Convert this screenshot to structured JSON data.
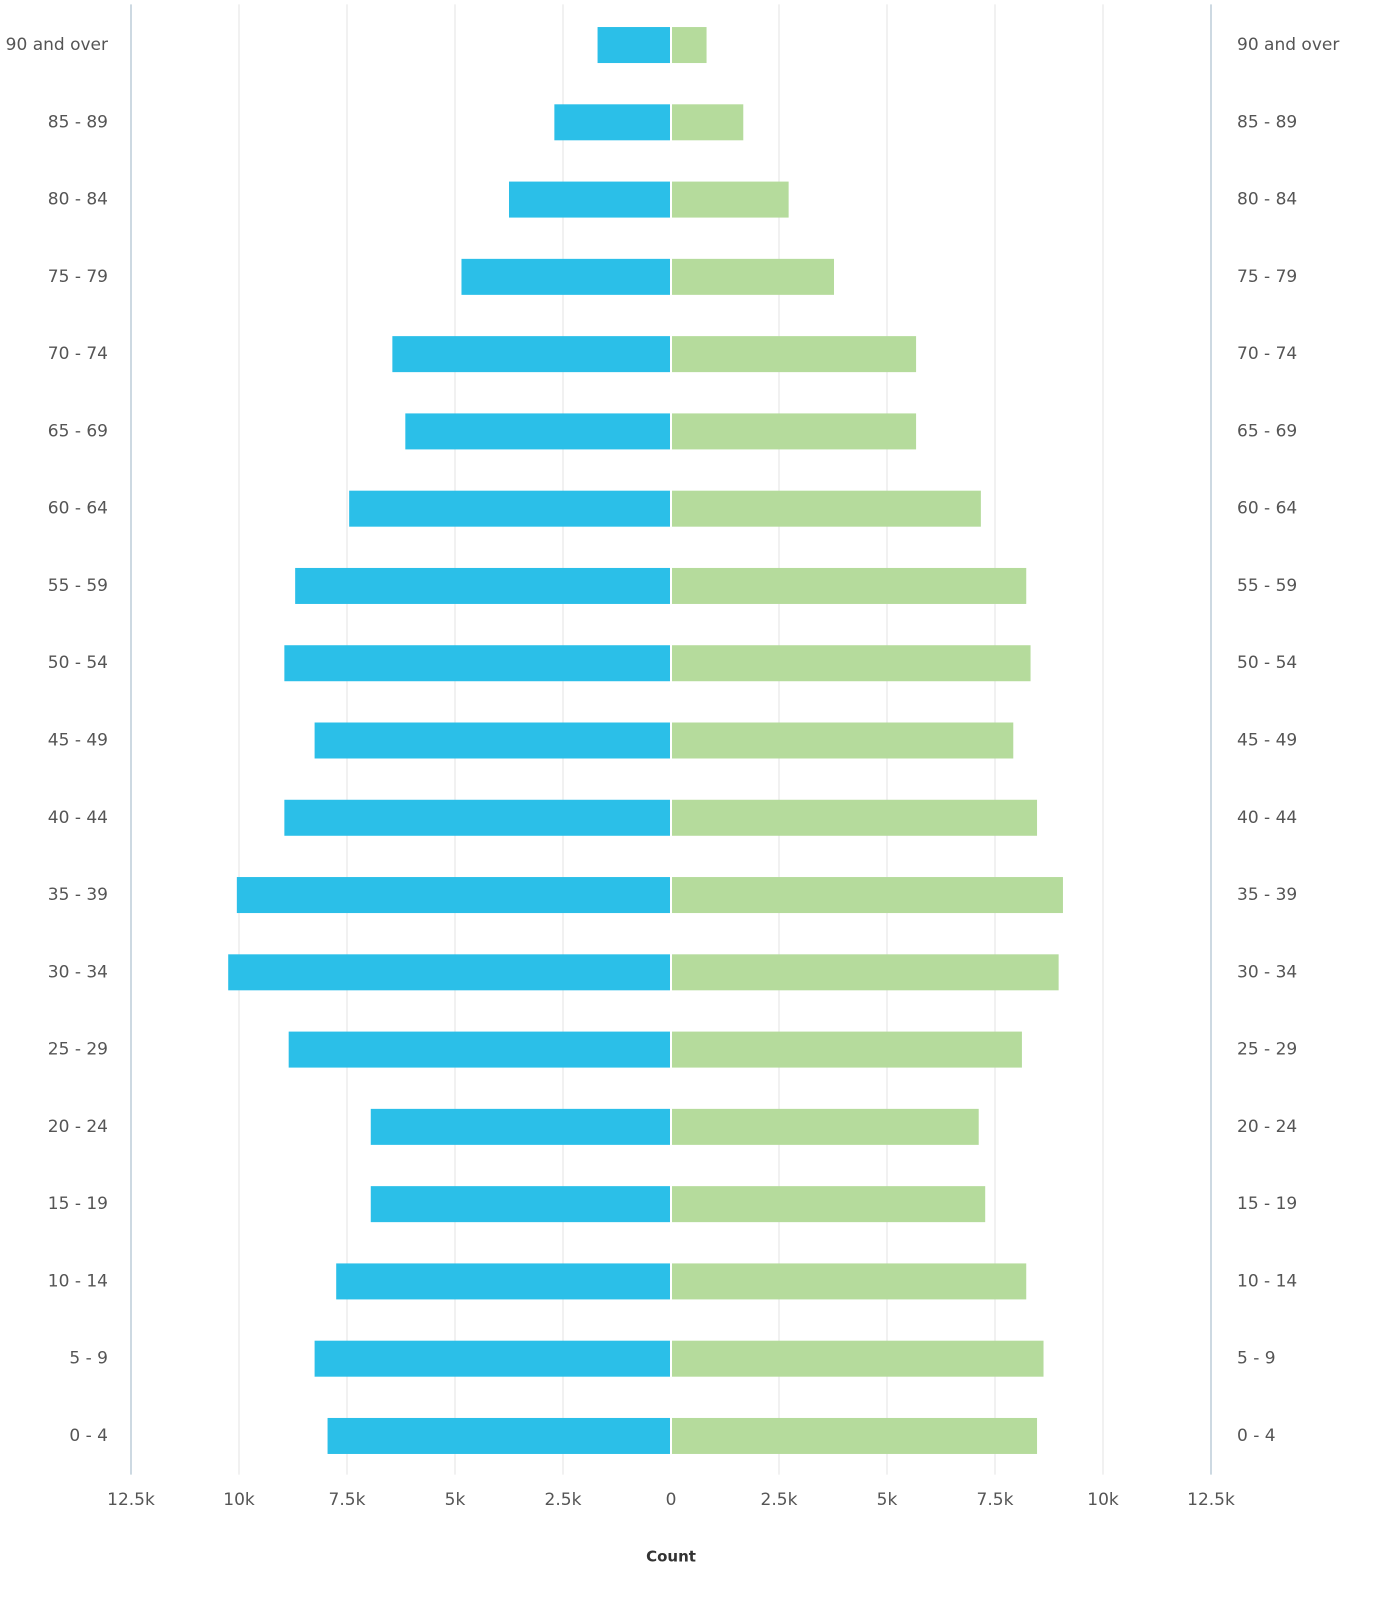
{
  "chart_data": {
    "type": "pyramid",
    "categories": [
      "90 and over",
      "85 - 89",
      "80 - 84",
      "75 - 79",
      "70 - 74",
      "65 - 69",
      "60 - 64",
      "55 - 59",
      "50 - 54",
      "45 - 49",
      "40 - 44",
      "35 - 39",
      "30 - 34",
      "25 - 29",
      "20 - 24",
      "15 - 19",
      "10 - 14",
      "5 - 9",
      "0 - 4"
    ],
    "series": [
      {
        "color": "#2bbfe8",
        "values": [
          1700,
          2700,
          3750,
          4850,
          6450,
          6150,
          7450,
          8700,
          8950,
          8250,
          8950,
          10050,
          10250,
          8850,
          6950,
          6950,
          7750,
          8250,
          7950
        ]
      },
      {
        "color": "#b5db9c",
        "values": [
          800,
          1650,
          2700,
          3750,
          5650,
          5650,
          7150,
          8200,
          8300,
          7900,
          8450,
          9050,
          8950,
          8100,
          7100,
          7250,
          8200,
          8600,
          8450
        ]
      }
    ],
    "xlabel": "Count",
    "xlim": [
      0,
      12500
    ],
    "xticks": [
      0,
      {
        "value": 2500,
        "label": "2.5k"
      },
      {
        "value": 5000,
        "label": "5k"
      },
      {
        "value": 7500,
        "label": "7.5k"
      },
      {
        "value": 10000,
        "label": "10k"
      },
      {
        "value": 12500,
        "label": "12.5k"
      }
    ],
    "grid": true
  }
}
